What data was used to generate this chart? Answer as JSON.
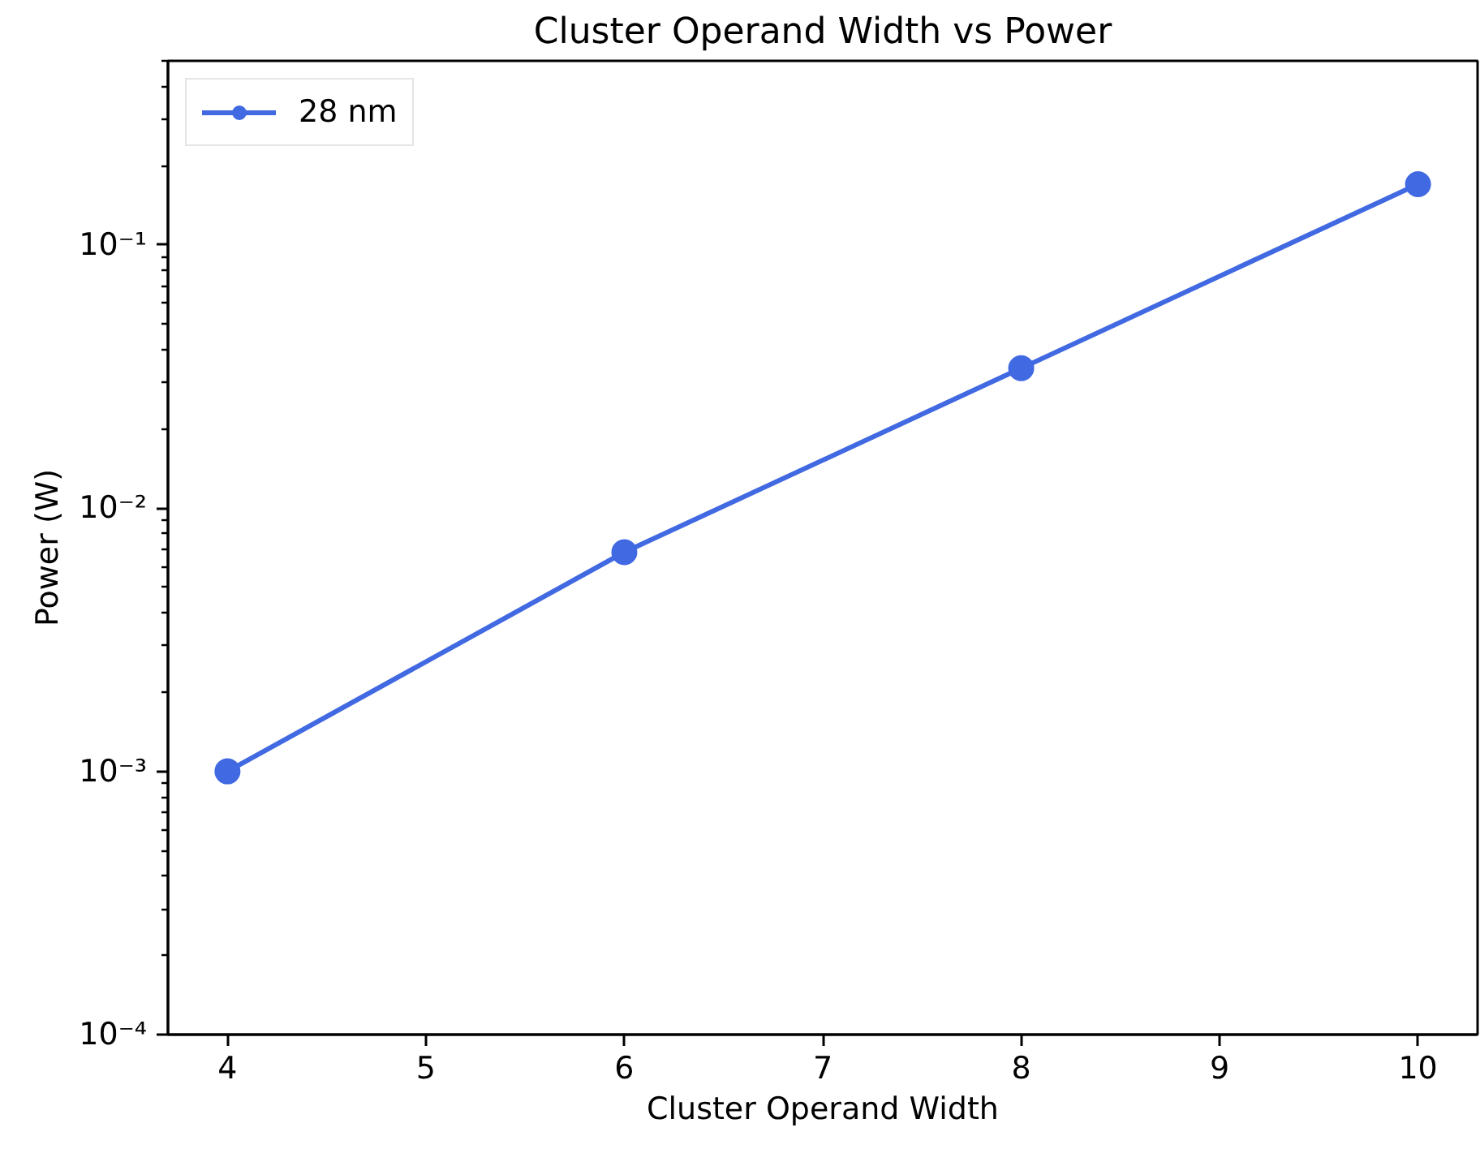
{
  "chart_data": {
    "type": "line",
    "title": "Cluster Operand Width vs Power",
    "xlabel": "Cluster Operand Width",
    "ylabel": "Power (W)",
    "x": [
      4,
      6,
      8,
      10
    ],
    "series": [
      {
        "name": "28 nm",
        "color": "#4169e1",
        "values": [
          0.001,
          0.0068,
          0.034,
          0.17
        ]
      }
    ],
    "xlim": [
      3.7,
      10.3
    ],
    "ylim": [
      0.0001,
      0.5
    ],
    "xticks": [
      4,
      5,
      6,
      7,
      8,
      9,
      10
    ],
    "yticks": [
      {
        "value": 0.0001,
        "label": "10⁻⁴"
      },
      {
        "value": 0.001,
        "label": "10⁻³"
      },
      {
        "value": 0.01,
        "label": "10⁻²"
      },
      {
        "value": 0.1,
        "label": "10⁻¹"
      }
    ],
    "log": "y",
    "grid": false,
    "legend": "top left",
    "marker": "circle",
    "line_style": "solid"
  }
}
